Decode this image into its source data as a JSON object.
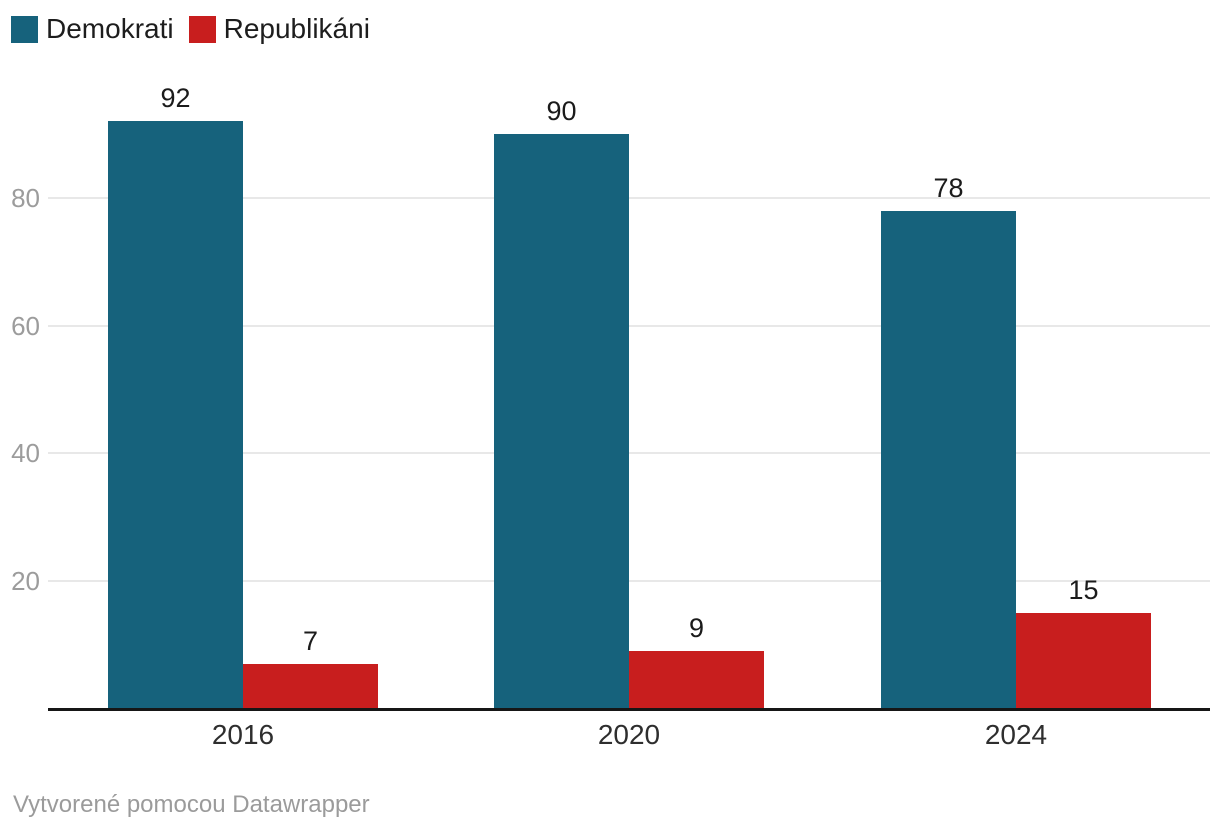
{
  "chart_data": {
    "type": "bar",
    "categories": [
      "2016",
      "2020",
      "2024"
    ],
    "series": [
      {
        "name": "Demokrati",
        "color": "#16627c",
        "values": [
          92,
          90,
          78
        ]
      },
      {
        "name": "Republikáni",
        "color": "#c81e1e",
        "values": [
          7,
          9,
          15
        ]
      }
    ],
    "title": "",
    "xlabel": "",
    "ylabel": "",
    "ylim": [
      0,
      100
    ],
    "yticks": [
      20,
      40,
      60,
      80
    ],
    "grid": true,
    "legend_position": "top-left",
    "value_labels": true
  },
  "legend": {
    "items": [
      {
        "label": "Demokrati",
        "color": "#16627c"
      },
      {
        "label": "Republikáni",
        "color": "#c81e1e"
      }
    ]
  },
  "colors": {
    "bar_democrat": "#16627c",
    "bar_republican": "#c81e1e",
    "gridline": "#e8e8e8",
    "axis": "#161616",
    "tick_text": "#9c9c9c",
    "background": "#ffffff"
  },
  "footer": {
    "attribution": "Vytvorené pomocou Datawrapper"
  }
}
